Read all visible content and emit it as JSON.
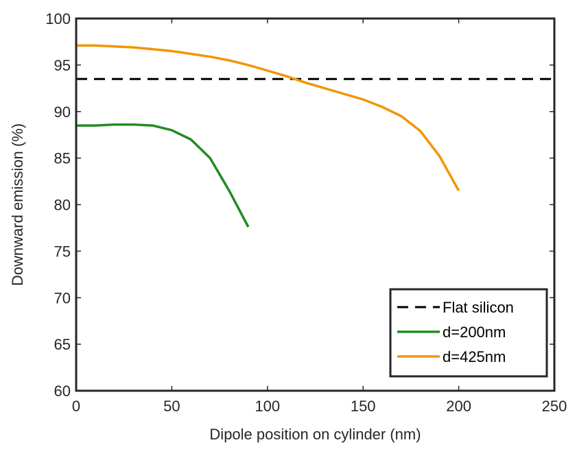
{
  "chart_data": {
    "type": "line",
    "title": "",
    "xlabel": "Dipole position on cylinder (nm)",
    "ylabel": "Downward emission (%)",
    "xlim": [
      0,
      250
    ],
    "ylim": [
      60,
      100
    ],
    "xticks": [
      0,
      50,
      100,
      150,
      200,
      250
    ],
    "yticks": [
      60,
      65,
      70,
      75,
      80,
      85,
      90,
      95,
      100
    ],
    "grid": false,
    "legend_position": "bottom-right",
    "series": [
      {
        "name": "Flat silicon",
        "style": "dashed",
        "color": "#000000",
        "x": [
          0,
          250
        ],
        "y": [
          93.5,
          93.5
        ]
      },
      {
        "name": "d=200nm",
        "style": "solid",
        "color": "#228B22",
        "x": [
          0,
          10,
          20,
          30,
          40,
          50,
          60,
          70,
          80,
          90
        ],
        "y": [
          88.5,
          88.5,
          88.6,
          88.6,
          88.5,
          88.0,
          87.0,
          85.0,
          81.5,
          77.6
        ]
      },
      {
        "name": "d=425nm",
        "style": "solid",
        "color": "#F29500",
        "x": [
          0,
          10,
          20,
          30,
          40,
          50,
          60,
          70,
          80,
          90,
          100,
          110,
          120,
          130,
          140,
          150,
          160,
          170,
          180,
          190,
          200
        ],
        "y": [
          97.1,
          97.1,
          97.0,
          96.9,
          96.7,
          96.5,
          96.2,
          95.9,
          95.5,
          95.0,
          94.4,
          93.8,
          93.1,
          92.5,
          91.9,
          91.3,
          90.5,
          89.5,
          87.9,
          85.2,
          81.5
        ]
      }
    ]
  }
}
